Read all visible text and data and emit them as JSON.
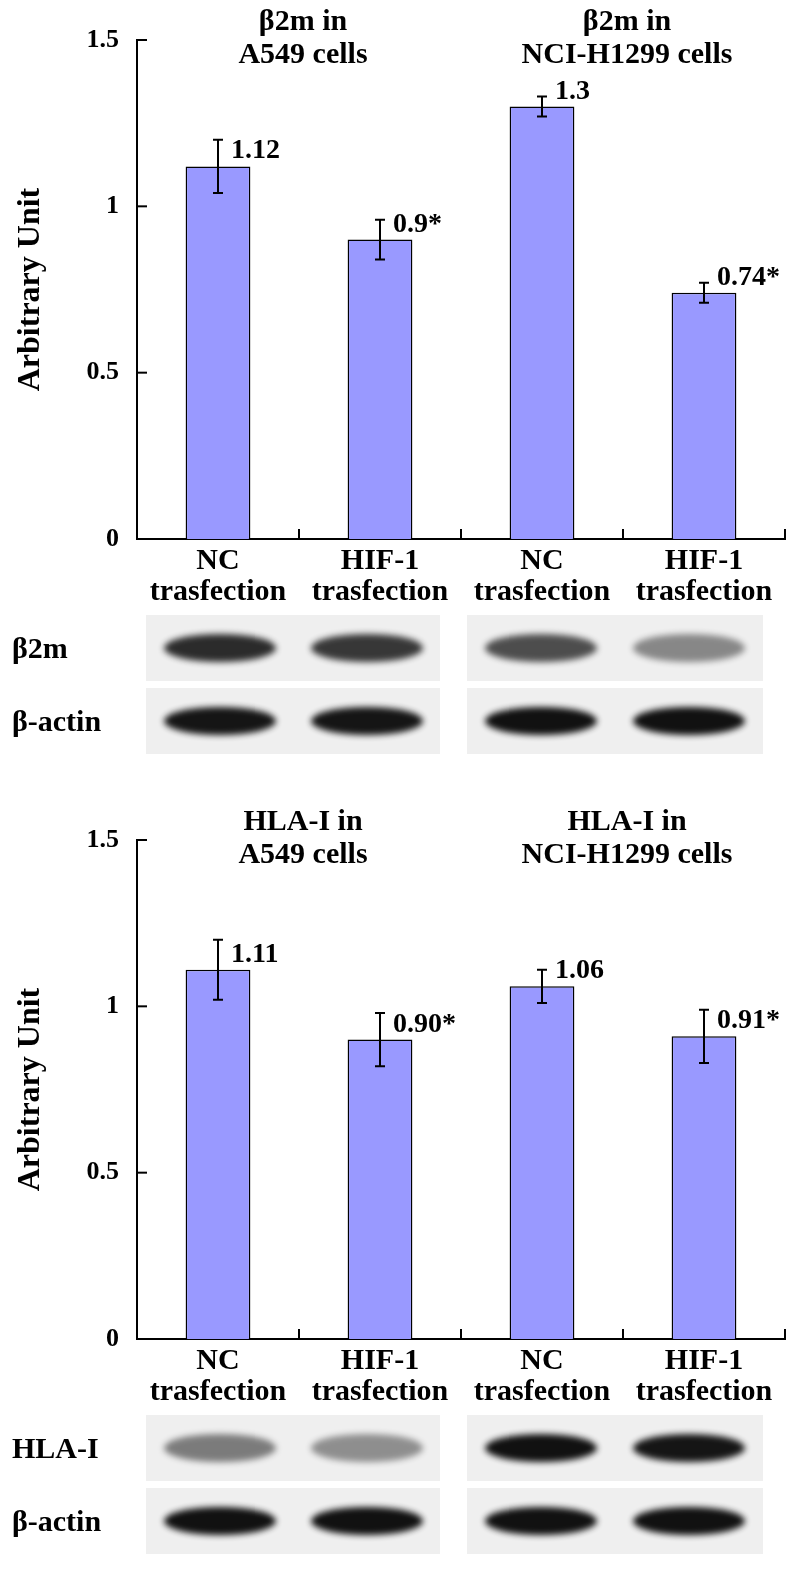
{
  "chart_data": [
    {
      "type": "bar",
      "ylabel": "Arbitrary Unit",
      "categories": [
        "NC trasfection",
        "HIF-1 trasfection",
        "NC trasfection",
        "HIF-1 trasfection"
      ],
      "values": [
        1.12,
        0.9,
        1.3,
        0.74
      ],
      "errors": [
        0.08,
        0.06,
        0.03,
        0.03
      ],
      "value_labels": [
        "1.12",
        "0.9*",
        "1.3",
        "0.74*"
      ],
      "color": "#9999ff",
      "ylim": [
        0,
        1.5
      ],
      "yticks": [
        0,
        0.5,
        1,
        1.5
      ],
      "annotations": [
        "β2m in\nA549 cells",
        "β2m in\nNCI-H1299 cells",
        "β2m",
        "β-actin"
      ]
    },
    {
      "type": "bar",
      "ylabel": "Arbitrary Unit",
      "categories": [
        "NC trasfection",
        "HIF-1 trasfection",
        "NC trasfection",
        "HIF-1 trasfection"
      ],
      "values": [
        1.11,
        0.9,
        1.06,
        0.91
      ],
      "errors": [
        0.09,
        0.08,
        0.05,
        0.08
      ],
      "value_labels": [
        "1.11",
        "0.90*",
        "1.06",
        "0.91*"
      ],
      "color": "#9999ff",
      "ylim": [
        0,
        1.5
      ],
      "yticks": [
        0,
        0.5,
        1,
        1.5
      ],
      "annotations": [
        "HLA-I in\nA549 cells",
        "HLA-I in\nNCI-H1299 cells",
        "HLA-I",
        "β-actin"
      ]
    }
  ]
}
